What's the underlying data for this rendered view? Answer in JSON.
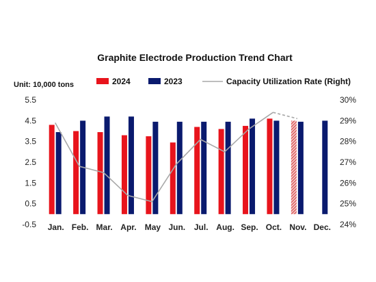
{
  "chart_data": {
    "type": "bar",
    "title": "Graphite Electrode Production Trend Chart",
    "unit": "Unit: 10,000 tons",
    "categories": [
      "Jan.",
      "Feb.",
      "Mar.",
      "Apr.",
      "May",
      "Jun.",
      "Jul.",
      "Aug.",
      "Sep.",
      "Oct.",
      "Nov.",
      "Dec."
    ],
    "series": [
      {
        "name": "2024",
        "kind": "bar",
        "color": "#e8141c",
        "values": [
          4.3,
          4.0,
          3.95,
          3.8,
          3.75,
          3.45,
          4.2,
          4.1,
          4.25,
          4.6,
          4.5,
          null
        ],
        "hatched_categories": [
          "Nov."
        ]
      },
      {
        "name": "2023",
        "kind": "bar",
        "color": "#0a1a6e",
        "values": [
          3.95,
          4.5,
          4.7,
          4.7,
          4.45,
          4.45,
          4.45,
          4.45,
          4.6,
          4.5,
          4.45,
          4.5
        ]
      },
      {
        "name": "Capacity Utilization Rate (Right)",
        "kind": "line",
        "axis": "right",
        "color": "#a8a8a8",
        "values": [
          28.9,
          26.8,
          26.5,
          25.4,
          25.1,
          26.9,
          28.1,
          27.5,
          28.6,
          29.4,
          29.1,
          null
        ]
      }
    ],
    "y_left": {
      "ticks": [
        "5.5",
        "4.5",
        "3.5",
        "2.5",
        "1.5",
        "0.5",
        "-0.5"
      ],
      "range": [
        -0.5,
        5.5
      ]
    },
    "y_right": {
      "ticks": [
        "30%",
        "29%",
        "28%",
        "27%",
        "26%",
        "25%",
        "24%"
      ],
      "range": [
        24,
        30
      ]
    },
    "grid": false,
    "legend_position": "top"
  }
}
